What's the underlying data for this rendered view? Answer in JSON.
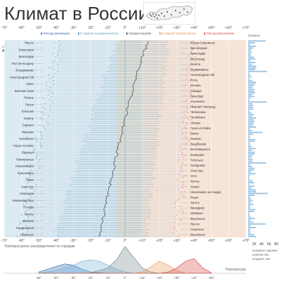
{
  "page": {
    "title": "Климат в России",
    "filter_label": "Найти город",
    "filter_value": "All",
    "population_header": "Сколько",
    "distribution_label": "Температурное распределение по городам",
    "temperature_label": "Температура",
    "tabs": [
      "2K",
      "4K",
      "6K",
      "8K"
    ],
    "side_note": "Среднее годовое количество осадков, мм"
  },
  "legend": {
    "record_min": "Рекорд минимума",
    "coldest_month": "В самый холодный месяц",
    "annual_avg": "Среднегодовая",
    "warmest_month": "В самый тёплый месяц",
    "record_max": "Рекорд максимума"
  },
  "colors": {
    "record_min": "#3b6fb6",
    "coldest": "#7fb7d9",
    "average": "#555555",
    "warmest": "#e8a36a",
    "record_max": "#d9534f",
    "zone_cold": "#dceaf3",
    "zone_neutral": "#e6e2d6",
    "zone_warm": "#f6e4d8"
  },
  "chart_data": {
    "type": "scatter",
    "xlim": [
      -70,
      70
    ],
    "x_ticks": [
      "-70°",
      "-60°",
      "-50°",
      "-40°",
      "-30°",
      "-20°",
      "-10°",
      "0°",
      "+10°",
      "+20°",
      "+30°",
      "+40°",
      "+50°",
      "+60°",
      "+70°"
    ],
    "cities_left": [
      "Якутск",
      "Евпатория",
      "Краснодар",
      "Ростов-на-Дону",
      "Владикавказ",
      "Александров Гай",
      "Орёл",
      "Великие Луки",
      "Рязань",
      "Пенза",
      "Елатьма",
      "Казань",
      "Саранск",
      "Иваново",
      "Челябинск",
      "Горно-Алтайск",
      "Барнаул",
      "Новокузнецк",
      "Новосибирск",
      "Красноярск",
      "Томск",
      "Улан-Удэ",
      "Кемерово",
      "Нижневартовск",
      "Печора",
      "Ханты",
      "Эвенкия",
      "Кандалакша",
      "Норильск"
    ],
    "cities_right": [
      "Южно-Сахалинск",
      "Бахчисарай",
      "Краснодар",
      "Волгоград",
      "Элиста",
      "Владикавказ",
      "Александров Гай",
      "Елец",
      "Москва",
      "Самара",
      "Оренбург",
      "Ульяновск",
      "Нижний Новгород",
      "Чебоксары",
      "Челябинск",
      "Абакан",
      "Горно-Алтайск",
      "Бийск",
      "Тюмень",
      "Бердбыхан",
      "Благовещенск",
      "Кемерово",
      "Тобольск",
      "Хабаровск",
      "Улан-Удэ",
      "Ухта",
      "Ханты",
      "Усинкт",
      "Николаевск-на-Амуре",
      "Бодог",
      "Ханты",
      "Ванкарем",
      "Оймякон",
      "Верхоянск",
      "Якутск",
      "Норильск",
      "Верхоянск"
    ],
    "series": [
      {
        "name": "Рекорд минимума",
        "start": -38,
        "end": -60
      },
      {
        "name": "В самый холодный месяц",
        "start": -3,
        "end": -40
      },
      {
        "name": "Среднегодовая",
        "start": 14,
        "end": -15
      },
      {
        "name": "В самый тёплый месяц",
        "start": 25,
        "end": 12
      },
      {
        "name": "Рекорд максимума",
        "start": 40,
        "end": 30
      }
    ],
    "distribution": {
      "x": [
        -50,
        -45,
        -40,
        -35,
        -30,
        -25,
        -20,
        -15,
        -10,
        -5,
        0,
        5,
        10,
        15,
        20,
        25,
        30,
        35,
        40,
        45,
        50
      ],
      "record_min": [
        0.05,
        0.15,
        0.25,
        0.35,
        0.3,
        0.15,
        0.05,
        0.02,
        0,
        0,
        0,
        0,
        0,
        0,
        0,
        0,
        0,
        0,
        0,
        0,
        0
      ],
      "coldest": [
        0,
        0.05,
        0.1,
        0.2,
        0.3,
        0.45,
        0.5,
        0.45,
        0.3,
        0.15,
        0.05,
        0,
        0,
        0,
        0,
        0,
        0,
        0,
        0,
        0,
        0
      ],
      "average": [
        0,
        0,
        0,
        0,
        0,
        0,
        0.02,
        0.1,
        0.2,
        0.5,
        1.0,
        0.6,
        0.2,
        0.05,
        0,
        0,
        0,
        0,
        0,
        0,
        0
      ],
      "warmest": [
        0,
        0,
        0,
        0,
        0,
        0,
        0,
        0,
        0,
        0,
        0,
        0,
        0.05,
        0.25,
        0.45,
        0.3,
        0.1,
        0,
        0,
        0,
        0
      ],
      "record_max": [
        0,
        0,
        0,
        0,
        0,
        0,
        0,
        0,
        0,
        0,
        0,
        0,
        0,
        0,
        0,
        0.05,
        0.2,
        0.45,
        0.55,
        0.2,
        0.02
      ]
    }
  }
}
